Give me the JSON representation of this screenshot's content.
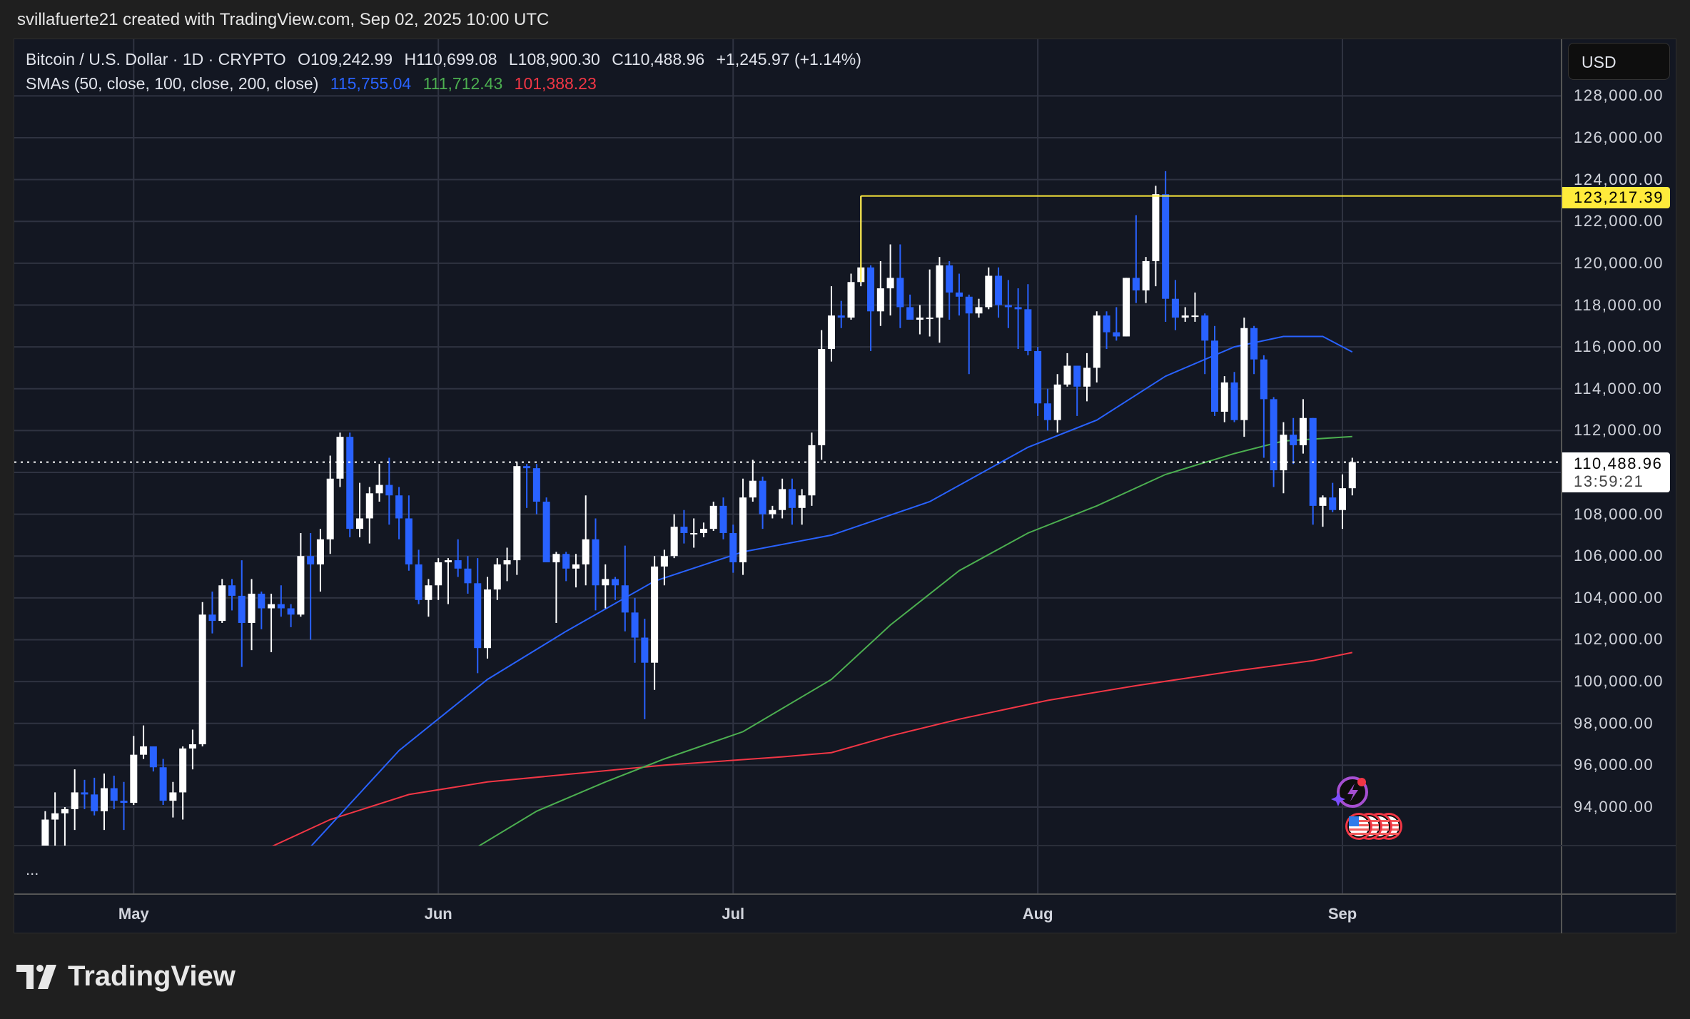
{
  "header": {
    "text": "svillafuerte21 created with TradingView.com, Sep 02, 2025 10:00 UTC"
  },
  "legend": {
    "symbol": "Bitcoin / U.S. Dollar · 1D · CRYPTO",
    "open": "O109,242.99",
    "high": "H110,699.08",
    "low": "L108,900.30",
    "close": "C110,488.96",
    "change": "+1,245.97 (+1.14%)",
    "sma_label": "SMAs (50, close, 100, close, 200, close)",
    "sma50": "115,755.04",
    "sma100": "111,712.43",
    "sma200": "101,388.23"
  },
  "price_axis": {
    "currency": "USD",
    "ticks": [
      "128,000.00",
      "126,000.00",
      "124,000.00",
      "122,000.00",
      "120,000.00",
      "118,000.00",
      "116,000.00",
      "114,000.00",
      "112,000.00",
      "110,000.00",
      "108,000.00",
      "106,000.00",
      "104,000.00",
      "102,000.00",
      "100,000.00",
      "98,000.00",
      "96,000.00",
      "94,000.00"
    ],
    "tick_values": [
      128000,
      126000,
      124000,
      122000,
      120000,
      118000,
      116000,
      114000,
      112000,
      110000,
      108000,
      106000,
      104000,
      102000,
      100000,
      98000,
      96000,
      94000
    ],
    "hidden_ticks": [
      "110,000.00"
    ],
    "level_label": "123,217.39",
    "last_price_label": "110,488.96",
    "countdown": "13:59:21"
  },
  "time_axis": {
    "labels": [
      "May",
      "Jun",
      "Jul",
      "Aug",
      "Sep"
    ],
    "dates": [
      "2025-05-01",
      "2025-06-01",
      "2025-07-01",
      "2025-08-01",
      "2025-09-01"
    ]
  },
  "lower_pane": {
    "more": "..."
  },
  "branding": {
    "logo_text": "TradingView"
  },
  "colors": {
    "up": "#ffffff",
    "down": "#2962ff",
    "sma50": "#2962ff",
    "sma100": "#4caf50",
    "sma200": "#f23645",
    "level": "#ffeb3b",
    "background": "#131722",
    "grid": "#2f3341"
  },
  "chart_data": {
    "type": "candlestick",
    "ylim": [
      92000,
      129000
    ],
    "grid": true,
    "horizontal_level": 123217.39,
    "last_price": 110488.96,
    "candles_columns": [
      "date",
      "open",
      "high",
      "low",
      "close"
    ],
    "candles": [
      [
        "2025-04-22",
        87500,
        93800,
        87600,
        93400
      ],
      [
        "2025-04-23",
        93400,
        94700,
        91900,
        93700
      ],
      [
        "2025-04-24",
        93700,
        94000,
        91700,
        93900
      ],
      [
        "2025-04-25",
        93900,
        95800,
        92900,
        94700
      ],
      [
        "2025-04-26",
        94700,
        95300,
        93900,
        94600
      ],
      [
        "2025-04-27",
        94600,
        95400,
        93600,
        93800
      ],
      [
        "2025-04-28",
        93800,
        95600,
        92900,
        94900
      ],
      [
        "2025-04-29",
        94900,
        95500,
        93900,
        94300
      ],
      [
        "2025-04-30",
        94300,
        95200,
        92900,
        94200
      ],
      [
        "2025-05-01",
        94200,
        97400,
        94100,
        96500
      ],
      [
        "2025-05-02",
        96500,
        97900,
        96300,
        96900
      ],
      [
        "2025-05-03",
        96900,
        96900,
        95700,
        95900
      ],
      [
        "2025-05-04",
        95900,
        96300,
        94100,
        94300
      ],
      [
        "2025-05-05",
        94300,
        95200,
        93500,
        94700
      ],
      [
        "2025-05-06",
        94700,
        96900,
        93400,
        96800
      ],
      [
        "2025-05-07",
        96800,
        97700,
        95800,
        97000
      ],
      [
        "2025-05-08",
        97000,
        103800,
        96900,
        103200
      ],
      [
        "2025-05-09",
        103200,
        104300,
        102300,
        102900
      ],
      [
        "2025-05-10",
        102900,
        104900,
        102800,
        104600
      ],
      [
        "2025-05-11",
        104600,
        104900,
        103400,
        104100
      ],
      [
        "2025-05-12",
        104100,
        105800,
        100700,
        102800
      ],
      [
        "2025-05-13",
        102800,
        104900,
        101500,
        104200
      ],
      [
        "2025-05-14",
        104200,
        104300,
        102500,
        103500
      ],
      [
        "2025-05-15",
        103500,
        104200,
        101400,
        103700
      ],
      [
        "2025-05-16",
        103700,
        104600,
        103100,
        103500
      ],
      [
        "2025-05-17",
        103500,
        103700,
        102600,
        103200
      ],
      [
        "2025-05-18",
        103200,
        107100,
        103100,
        106000
      ],
      [
        "2025-05-19",
        106000,
        107100,
        102000,
        105600
      ],
      [
        "2025-05-20",
        105600,
        107300,
        104300,
        106800
      ],
      [
        "2025-05-21",
        106800,
        110800,
        106100,
        109700
      ],
      [
        "2025-05-22",
        109700,
        111900,
        109300,
        111700
      ],
      [
        "2025-05-23",
        111700,
        111900,
        106900,
        107300
      ],
      [
        "2025-05-24",
        107300,
        109500,
        106900,
        107800
      ],
      [
        "2025-05-25",
        107800,
        109300,
        106600,
        109000
      ],
      [
        "2025-05-26",
        109000,
        110400,
        108600,
        109400
      ],
      [
        "2025-05-27",
        109400,
        110700,
        107500,
        108900
      ],
      [
        "2025-05-28",
        108900,
        109300,
        106800,
        107800
      ],
      [
        "2025-05-29",
        107800,
        108900,
        105300,
        105600
      ],
      [
        "2025-05-30",
        105600,
        106300,
        103700,
        103900
      ],
      [
        "2025-05-31",
        103900,
        104900,
        103100,
        104600
      ],
      [
        "2025-06-01",
        104600,
        105900,
        103900,
        105700
      ],
      [
        "2025-06-02",
        105700,
        105900,
        103700,
        105800
      ],
      [
        "2025-06-03",
        105800,
        106800,
        105000,
        105400
      ],
      [
        "2025-06-04",
        105400,
        106000,
        104200,
        104700
      ],
      [
        "2025-06-05",
        104700,
        105900,
        100400,
        101600
      ],
      [
        "2025-06-06",
        101600,
        105000,
        101100,
        104400
      ],
      [
        "2025-06-07",
        104400,
        105900,
        103900,
        105600
      ],
      [
        "2025-06-08",
        105600,
        106400,
        104800,
        105800
      ],
      [
        "2025-06-09",
        105800,
        110500,
        105100,
        110300
      ],
      [
        "2025-06-10",
        110300,
        110400,
        108300,
        110200
      ],
      [
        "2025-06-11",
        110200,
        110400,
        108000,
        108600
      ],
      [
        "2025-06-12",
        108600,
        108800,
        105700,
        105700
      ],
      [
        "2025-06-13",
        105700,
        106200,
        102800,
        106100
      ],
      [
        "2025-06-14",
        106100,
        106200,
        104800,
        105400
      ],
      [
        "2025-06-15",
        105400,
        106100,
        104500,
        105600
      ],
      [
        "2025-06-16",
        105600,
        108900,
        104600,
        106800
      ],
      [
        "2025-06-17",
        106800,
        107800,
        103400,
        104600
      ],
      [
        "2025-06-18",
        104600,
        105600,
        103500,
        104900
      ],
      [
        "2025-06-19",
        104900,
        105000,
        103900,
        104600
      ],
      [
        "2025-06-20",
        104600,
        106500,
        102400,
        103300
      ],
      [
        "2025-06-21",
        103300,
        104000,
        100900,
        102100
      ],
      [
        "2025-06-22",
        102100,
        103000,
        98200,
        100900
      ],
      [
        "2025-06-23",
        100900,
        106000,
        99600,
        105500
      ],
      [
        "2025-06-24",
        105500,
        106300,
        104600,
        106000
      ],
      [
        "2025-06-25",
        106000,
        108000,
        105900,
        107400
      ],
      [
        "2025-06-26",
        107400,
        108200,
        106600,
        107100
      ],
      [
        "2025-06-27",
        107100,
        107800,
        106400,
        107100
      ],
      [
        "2025-06-28",
        107100,
        107600,
        106900,
        107300
      ],
      [
        "2025-06-29",
        107300,
        108600,
        107200,
        108400
      ],
      [
        "2025-06-30",
        108400,
        108800,
        106800,
        107100
      ],
      [
        "2025-07-01",
        107100,
        107500,
        105200,
        105700
      ],
      [
        "2025-07-02",
        105700,
        109700,
        105100,
        108800
      ],
      [
        "2025-07-03",
        108800,
        110600,
        108600,
        109600
      ],
      [
        "2025-07-04",
        109600,
        109800,
        107300,
        108000
      ],
      [
        "2025-07-05",
        108000,
        108400,
        107800,
        108200
      ],
      [
        "2025-07-06",
        108200,
        109700,
        107800,
        109200
      ],
      [
        "2025-07-07",
        109200,
        109700,
        107500,
        108300
      ],
      [
        "2025-07-08",
        108300,
        109200,
        107500,
        108900
      ],
      [
        "2025-07-09",
        108900,
        111900,
        108400,
        111300
      ],
      [
        "2025-07-10",
        111300,
        116800,
        110600,
        115900
      ],
      [
        "2025-07-11",
        115900,
        118900,
        115300,
        117500
      ],
      [
        "2025-07-12",
        117500,
        118200,
        116900,
        117400
      ],
      [
        "2025-07-13",
        117400,
        119500,
        117300,
        119100
      ],
      [
        "2025-07-14",
        119100,
        123217,
        118900,
        119800
      ],
      [
        "2025-07-15",
        119800,
        119900,
        115800,
        117700
      ],
      [
        "2025-07-16",
        117700,
        120100,
        117000,
        118800
      ],
      [
        "2025-07-17",
        118800,
        120900,
        117500,
        119300
      ],
      [
        "2025-07-18",
        119300,
        120900,
        116900,
        117900
      ],
      [
        "2025-07-19",
        117900,
        118500,
        117300,
        117300
      ],
      [
        "2025-07-20",
        117300,
        118000,
        116600,
        117400
      ],
      [
        "2025-07-21",
        117400,
        119700,
        116500,
        117400
      ],
      [
        "2025-07-22",
        117400,
        120300,
        116200,
        119900
      ],
      [
        "2025-07-23",
        119900,
        120100,
        117300,
        118600
      ],
      [
        "2025-07-24",
        118600,
        119500,
        117500,
        118400
      ],
      [
        "2025-07-25",
        118400,
        118500,
        114700,
        117600
      ],
      [
        "2025-07-26",
        117600,
        118300,
        117400,
        117900
      ],
      [
        "2025-07-27",
        117900,
        119800,
        117800,
        119400
      ],
      [
        "2025-07-28",
        119400,
        119800,
        117400,
        118000
      ],
      [
        "2025-07-29",
        118000,
        119200,
        116900,
        117900
      ],
      [
        "2025-07-30",
        117900,
        118800,
        115900,
        117800
      ],
      [
        "2025-07-31",
        117800,
        119000,
        115600,
        115800
      ],
      [
        "2025-08-01",
        115800,
        116000,
        112700,
        113300
      ],
      [
        "2025-08-02",
        113300,
        114000,
        112000,
        112500
      ],
      [
        "2025-08-03",
        112500,
        114700,
        111900,
        114200
      ],
      [
        "2025-08-04",
        114200,
        115700,
        114100,
        115100
      ],
      [
        "2025-08-05",
        115100,
        115100,
        112700,
        114100
      ],
      [
        "2025-08-06",
        114100,
        115700,
        113400,
        115000
      ],
      [
        "2025-08-07",
        115000,
        117700,
        114300,
        117500
      ],
      [
        "2025-08-08",
        117500,
        117700,
        115900,
        116700
      ],
      [
        "2025-08-09",
        116700,
        117900,
        116300,
        116500
      ],
      [
        "2025-08-10",
        116500,
        119300,
        116500,
        119300
      ],
      [
        "2025-08-11",
        119300,
        122300,
        118100,
        118700
      ],
      [
        "2025-08-12",
        118700,
        120300,
        118100,
        120100
      ],
      [
        "2025-08-13",
        120100,
        123700,
        118900,
        123300
      ],
      [
        "2025-08-14",
        123300,
        124400,
        117200,
        118300
      ],
      [
        "2025-08-15",
        118300,
        119200,
        116800,
        117400
      ],
      [
        "2025-08-16",
        117400,
        117900,
        117200,
        117500
      ],
      [
        "2025-08-17",
        117500,
        118600,
        117200,
        117500
      ],
      [
        "2025-08-18",
        117500,
        117600,
        114700,
        116300
      ],
      [
        "2025-08-19",
        116300,
        117000,
        112700,
        112900
      ],
      [
        "2025-08-20",
        112900,
        114600,
        112400,
        114300
      ],
      [
        "2025-08-21",
        114300,
        114800,
        112400,
        112500
      ],
      [
        "2025-08-22",
        112500,
        117400,
        111700,
        116900
      ],
      [
        "2025-08-23",
        116900,
        117000,
        114700,
        115400
      ],
      [
        "2025-08-24",
        115400,
        115600,
        110700,
        113500
      ],
      [
        "2025-08-25",
        113500,
        113600,
        109300,
        110100
      ],
      [
        "2025-08-26",
        110100,
        112400,
        109000,
        111800
      ],
      [
        "2025-08-27",
        111800,
        112600,
        110400,
        111300
      ],
      [
        "2025-08-28",
        111300,
        113500,
        110900,
        112600
      ],
      [
        "2025-08-29",
        112600,
        112600,
        107500,
        108400
      ],
      [
        "2025-08-30",
        108400,
        108900,
        107400,
        108800
      ],
      [
        "2025-08-31",
        108800,
        109500,
        108100,
        108200
      ],
      [
        "2025-09-01",
        108200,
        109900,
        107300,
        109243
      ],
      [
        "2025-09-02",
        109242.99,
        110699.08,
        108900.3,
        110488.96
      ]
    ],
    "sma50": [
      [
        "2025-05-19",
        92100
      ],
      [
        "2025-05-28",
        96700
      ],
      [
        "2025-06-06",
        100100
      ],
      [
        "2025-06-14",
        102400
      ],
      [
        "2025-06-23",
        104800
      ],
      [
        "2025-07-02",
        106200
      ],
      [
        "2025-07-11",
        107000
      ],
      [
        "2025-07-21",
        108600
      ],
      [
        "2025-07-31",
        111200
      ],
      [
        "2025-08-07",
        112500
      ],
      [
        "2025-08-14",
        114600
      ],
      [
        "2025-08-21",
        116000
      ],
      [
        "2025-08-26",
        116500
      ],
      [
        "2025-08-30",
        116500
      ],
      [
        "2025-09-02",
        115755.04
      ]
    ],
    "sma100": [
      [
        "2025-06-05",
        92100
      ],
      [
        "2025-06-11",
        93800
      ],
      [
        "2025-06-18",
        95200
      ],
      [
        "2025-06-24",
        96300
      ],
      [
        "2025-07-02",
        97600
      ],
      [
        "2025-07-11",
        100100
      ],
      [
        "2025-07-17",
        102700
      ],
      [
        "2025-07-24",
        105300
      ],
      [
        "2025-07-31",
        107100
      ],
      [
        "2025-08-07",
        108400
      ],
      [
        "2025-08-14",
        109900
      ],
      [
        "2025-08-21",
        110900
      ],
      [
        "2025-08-26",
        111500
      ],
      [
        "2025-09-02",
        111712.43
      ]
    ],
    "sma200": [
      [
        "2025-05-15",
        92100
      ],
      [
        "2025-05-21",
        93400
      ],
      [
        "2025-05-29",
        94600
      ],
      [
        "2025-06-06",
        95200
      ],
      [
        "2025-06-15",
        95600
      ],
      [
        "2025-06-24",
        96000
      ],
      [
        "2025-07-06",
        96400
      ],
      [
        "2025-07-11",
        96600
      ],
      [
        "2025-07-17",
        97400
      ],
      [
        "2025-07-24",
        98200
      ],
      [
        "2025-08-02",
        99100
      ],
      [
        "2025-08-11",
        99800
      ],
      [
        "2025-08-21",
        100500
      ],
      [
        "2025-08-29",
        101000
      ],
      [
        "2025-09-02",
        101388.23
      ]
    ]
  }
}
